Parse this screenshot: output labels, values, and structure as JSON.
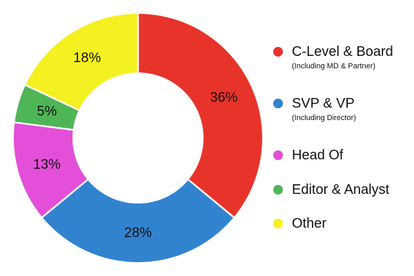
{
  "chart_data": {
    "type": "pie",
    "donut": true,
    "title": "",
    "legend_position": "right",
    "categories": [
      "C-Level & Board",
      "SVP & VP",
      "Head Of",
      "Editor & Analyst",
      "Other"
    ],
    "values": [
      36,
      28,
      13,
      5,
      18
    ],
    "value_labels": [
      "36%",
      "28%",
      "13%",
      "5%",
      "18%"
    ],
    "colors": [
      "#e8332a",
      "#3283cf",
      "#e34fd8",
      "#4fb657",
      "#f5f01f"
    ],
    "legend": [
      {
        "label": "C-Level & Board",
        "sublabel": "(Including MD & Partner)"
      },
      {
        "label": "SVP & VP",
        "sublabel": "(Including Director)"
      },
      {
        "label": "Head Of",
        "sublabel": ""
      },
      {
        "label": "Editor & Analyst",
        "sublabel": ""
      },
      {
        "label": "Other",
        "sublabel": ""
      }
    ]
  }
}
